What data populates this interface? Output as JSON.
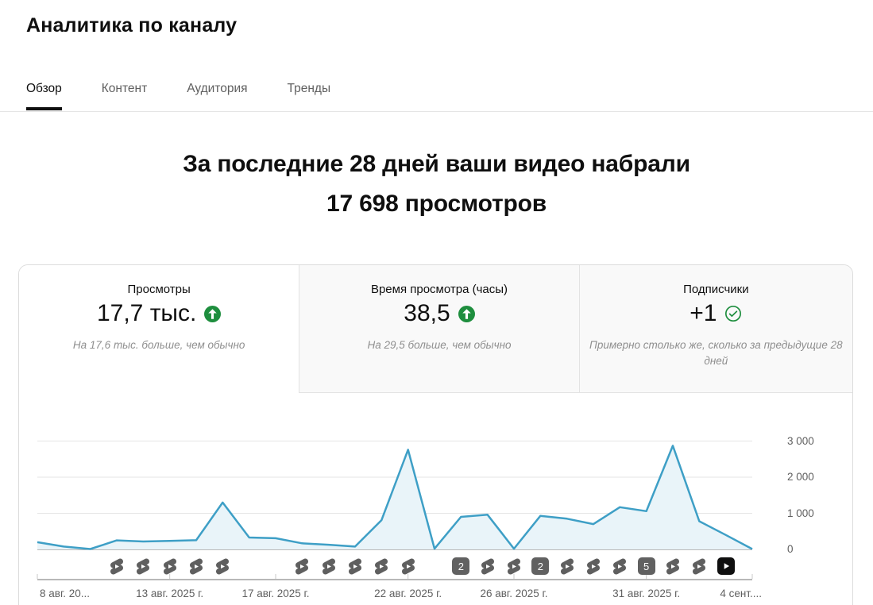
{
  "page": {
    "title": "Аналитика по каналу"
  },
  "tabs": [
    {
      "id": "overview",
      "label": "Обзор",
      "active": true
    },
    {
      "id": "content",
      "label": "Контент",
      "active": false
    },
    {
      "id": "audience",
      "label": "Аудитория",
      "active": false
    },
    {
      "id": "trends",
      "label": "Тренды",
      "active": false
    }
  ],
  "headline": {
    "line1": "За последние 28 дней ваши видео набрали",
    "line2": "17 698 просмотров"
  },
  "metrics": [
    {
      "id": "views",
      "label": "Просмотры",
      "value": "17,7 тыс.",
      "icon": "arrow-up-circle",
      "note": "На 17,6 тыс. больше, чем обычно",
      "selected": true
    },
    {
      "id": "watch-time",
      "label": "Время просмотра (часы)",
      "value": "38,5",
      "icon": "arrow-up-circle",
      "note": "На 29,5 больше, чем обычно",
      "selected": false
    },
    {
      "id": "subscribers",
      "label": "Подписчики",
      "value": "+1",
      "icon": "check-circle",
      "note": "Примерно столько же, сколько за предыдущие 28 дней",
      "selected": false
    }
  ],
  "colors": {
    "accent_green": "#1e8e3e",
    "line": "#3e9fc6",
    "line_fill": "#e9f4f9",
    "marker_gray": "#5f5f5f",
    "badge_gray": "#616161",
    "badge_black": "#0f0f0f",
    "grid": "#e6e6e6",
    "baseline": "#8f8f8f",
    "axis": "#b8b8b8",
    "axis_text": "#606060"
  },
  "chart_data": {
    "type": "area",
    "y_unit": "просмотры",
    "x_unit": "день",
    "days": 28,
    "values": [
      200,
      80,
      10,
      250,
      220,
      235,
      255,
      1300,
      330,
      310,
      170,
      130,
      80,
      810,
      2760,
      20,
      900,
      960,
      20,
      930,
      850,
      700,
      1170,
      1060,
      2870,
      780,
      400,
      10
    ],
    "ylim": [
      0,
      3200
    ],
    "grid": true,
    "legend": "none",
    "y_ticks": [
      {
        "value": 0,
        "label": "0"
      },
      {
        "value": 1000,
        "label": "1 000"
      },
      {
        "value": 2000,
        "label": "2 000"
      },
      {
        "value": 3000,
        "label": "3 000"
      }
    ],
    "x_ticks": [
      {
        "day": 0,
        "label": "8 авг. 20...",
        "anchor": "start"
      },
      {
        "day": 5,
        "label": "13 авг. 2025 г.",
        "anchor": "middle"
      },
      {
        "day": 9,
        "label": "17 авг. 2025 г.",
        "anchor": "middle"
      },
      {
        "day": 14,
        "label": "22 авг. 2025 г.",
        "anchor": "middle"
      },
      {
        "day": 18,
        "label": "26 авг. 2025 г.",
        "anchor": "middle"
      },
      {
        "day": 23,
        "label": "31 авг. 2025 г.",
        "anchor": "middle"
      },
      {
        "day": 27,
        "label": "4 сент....",
        "anchor": "end"
      }
    ],
    "markers": [
      {
        "day": 3,
        "type": "shorts"
      },
      {
        "day": 4,
        "type": "shorts"
      },
      {
        "day": 5,
        "type": "shorts"
      },
      {
        "day": 6,
        "type": "shorts"
      },
      {
        "day": 7,
        "type": "shorts"
      },
      {
        "day": 10,
        "type": "shorts"
      },
      {
        "day": 11,
        "type": "shorts"
      },
      {
        "day": 12,
        "type": "shorts"
      },
      {
        "day": 13,
        "type": "shorts"
      },
      {
        "day": 14,
        "type": "shorts"
      },
      {
        "day": 16,
        "type": "count",
        "label": "2"
      },
      {
        "day": 17,
        "type": "shorts"
      },
      {
        "day": 18,
        "type": "shorts"
      },
      {
        "day": 19,
        "type": "count",
        "label": "2"
      },
      {
        "day": 20,
        "type": "shorts"
      },
      {
        "day": 21,
        "type": "shorts"
      },
      {
        "day": 22,
        "type": "shorts"
      },
      {
        "day": 23,
        "type": "count",
        "label": "5"
      },
      {
        "day": 24,
        "type": "shorts"
      },
      {
        "day": 25,
        "type": "shorts"
      },
      {
        "day": 26,
        "type": "video"
      }
    ]
  }
}
